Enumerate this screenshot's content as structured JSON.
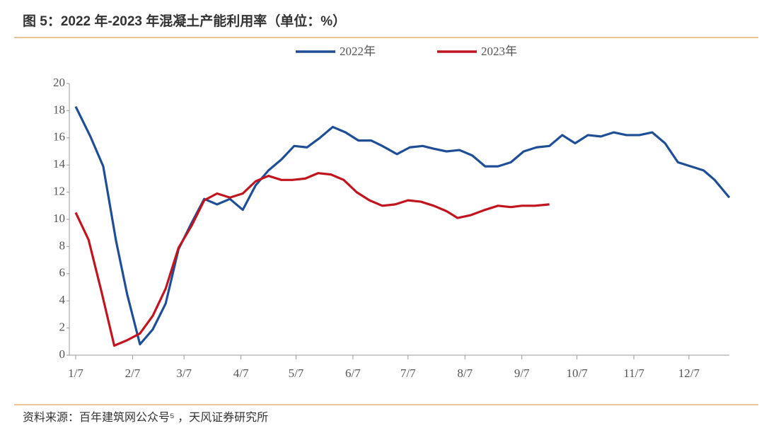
{
  "chart_data": {
    "type": "line",
    "title": "图 5：2022 年-2023 年混凝土产能利用率（单位：%）",
    "source": "资料来源：百年建筑网公众号⁵ ，天风证券研究所",
    "xlim": [
      0,
      356
    ],
    "xticks": [
      {
        "value": 0,
        "label": "1/7"
      },
      {
        "value": 31,
        "label": "2/7"
      },
      {
        "value": 59,
        "label": "3/7"
      },
      {
        "value": 90,
        "label": "4/7"
      },
      {
        "value": 120,
        "label": "5/7"
      },
      {
        "value": 151,
        "label": "6/7"
      },
      {
        "value": 181,
        "label": "7/7"
      },
      {
        "value": 212,
        "label": "8/7"
      },
      {
        "value": 243,
        "label": "9/7"
      },
      {
        "value": 273,
        "label": "10/7"
      },
      {
        "value": 304,
        "label": "11/7"
      },
      {
        "value": 334,
        "label": "12/7"
      }
    ],
    "ylim": [
      0,
      20
    ],
    "yticks": [
      0,
      2,
      4,
      6,
      8,
      10,
      12,
      14,
      16,
      18,
      20
    ],
    "legend": "top",
    "series": [
      {
        "name": "2022年",
        "color": "#1f4e96",
        "x": [
          0,
          8,
          15,
          22,
          28,
          35,
          42,
          49,
          56,
          63,
          70,
          77,
          84,
          91,
          98,
          105,
          112,
          119,
          126,
          133,
          140,
          147,
          154,
          161,
          167,
          175,
          182,
          189,
          195,
          202,
          209,
          216,
          223,
          230,
          237,
          244,
          251,
          258,
          265,
          272,
          279,
          286,
          293,
          300,
          307,
          314,
          321,
          328,
          335,
          342,
          348,
          356
        ],
        "values": [
          18.3,
          16.1,
          13.9,
          8.4,
          4.5,
          0.8,
          1.9,
          3.8,
          7.8,
          9.7,
          11.5,
          11.1,
          11.5,
          10.7,
          12.5,
          13.6,
          14.4,
          15.4,
          15.3,
          16.0,
          16.8,
          16.4,
          15.8,
          15.8,
          15.4,
          14.8,
          15.3,
          15.4,
          15.2,
          15.0,
          15.1,
          14.7,
          13.9,
          13.9,
          14.2,
          15.0,
          15.3,
          15.4,
          16.2,
          15.6,
          16.2,
          16.1,
          16.4,
          16.2,
          16.2,
          16.4,
          15.6,
          14.2,
          13.9,
          13.6,
          12.9,
          11.6
        ]
      },
      {
        "name": "2023年",
        "color": "#c0141e",
        "x": [
          0,
          7,
          14,
          21,
          28,
          35,
          42,
          49,
          56,
          63,
          70,
          77,
          84,
          91,
          98,
          105,
          112,
          118,
          125,
          132,
          139,
          146,
          153,
          160,
          167,
          174,
          181,
          188,
          195,
          202,
          208,
          215,
          223,
          230,
          237,
          243,
          250,
          258
        ],
        "values": [
          10.5,
          8.5,
          4.7,
          0.7,
          1.1,
          1.6,
          2.9,
          4.9,
          7.9,
          9.5,
          11.4,
          11.9,
          11.6,
          11.9,
          12.8,
          13.2,
          12.9,
          12.9,
          13.0,
          13.4,
          13.3,
          12.9,
          12.0,
          11.4,
          11.0,
          11.1,
          11.4,
          11.3,
          11.0,
          10.6,
          10.1,
          10.3,
          10.7,
          11.0,
          10.9,
          11.0,
          11.0,
          11.1
        ]
      }
    ]
  }
}
